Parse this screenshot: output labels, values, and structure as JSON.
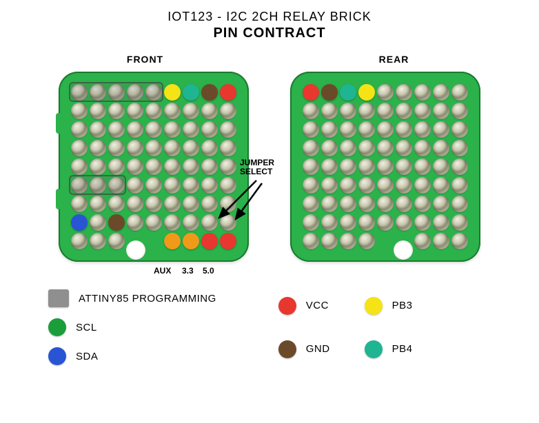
{
  "title": "IOT123 - I2C 2CH RELAY BRICK",
  "subtitle": "PIN CONTRACT",
  "front_label": "FRONT",
  "rear_label": "REAR",
  "jumper_label": "JUMPER\nSELECT",
  "bottom_labels": {
    "aux": "AUX",
    "v33": "3.3",
    "v50": "5.0"
  },
  "colors": {
    "board": "#2bb24a",
    "scl": "#1a9e3a",
    "sda": "#2954d4",
    "vcc": "#e8372f",
    "gnd": "#6b4a2a",
    "pb3": "#f5e315",
    "pb4": "#1fb593",
    "prog": "#8f8f8f",
    "orange": "#f09a1a"
  },
  "grid": {
    "cols": 9,
    "rows": 9,
    "spacing": 27,
    "hole_size": 24
  },
  "front_colored": [
    {
      "row": 0,
      "col": 5,
      "color": "#f5e315"
    },
    {
      "row": 0,
      "col": 6,
      "color": "#1fb593"
    },
    {
      "row": 0,
      "col": 7,
      "color": "#6b4a2a"
    },
    {
      "row": 0,
      "col": 8,
      "color": "#e8372f"
    },
    {
      "row": 7,
      "col": 0,
      "color": "#2954d4"
    },
    {
      "row": 7,
      "col": 2,
      "color": "#6b4a2a"
    },
    {
      "row": 8,
      "col": 5,
      "color": "#f09a1a"
    },
    {
      "row": 8,
      "col": 6,
      "color": "#f09a1a"
    },
    {
      "row": 8,
      "col": 7,
      "color": "#e8372f"
    },
    {
      "row": 8,
      "col": 8,
      "color": "#e8372f"
    }
  ],
  "rear_colored": [
    {
      "row": 0,
      "col": 0,
      "color": "#e8372f"
    },
    {
      "row": 0,
      "col": 1,
      "color": "#6b4a2a"
    },
    {
      "row": 0,
      "col": 2,
      "color": "#1fb593"
    },
    {
      "row": 0,
      "col": 3,
      "color": "#f5e315"
    }
  ],
  "front_boxes": [
    {
      "row": 0,
      "col": 0,
      "w": 5,
      "h": 1
    },
    {
      "row": 5,
      "col": 0,
      "w": 3,
      "h": 1
    }
  ],
  "front_skip": [
    [
      8,
      3
    ],
    [
      8,
      4
    ]
  ],
  "rear_skip": [
    [
      8,
      4
    ],
    [
      8,
      5
    ]
  ],
  "legend": {
    "left": [
      {
        "shape": "square",
        "color": "#8f8f8f",
        "label": "ATTINY85 PROGRAMMING"
      },
      {
        "shape": "circle",
        "color": "#1a9e3a",
        "label": "SCL"
      },
      {
        "shape": "circle",
        "color": "#2954d4",
        "label": "SDA"
      }
    ],
    "right": [
      {
        "color": "#e8372f",
        "label": "VCC"
      },
      {
        "color": "#f5e315",
        "label": "PB3"
      },
      {
        "color": "#6b4a2a",
        "label": "GND"
      },
      {
        "color": "#1fb593",
        "label": "PB4"
      }
    ]
  }
}
